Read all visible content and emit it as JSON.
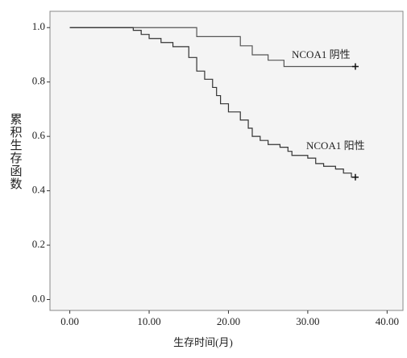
{
  "chart_data": {
    "type": "step",
    "xlabel": "生存时间(月)",
    "ylabel": "累积生存函数",
    "xlim": [
      -2.5,
      42
    ],
    "ylim": [
      -0.04,
      1.06
    ],
    "xticks": [
      {
        "value": 0,
        "label": "0.00"
      },
      {
        "value": 10,
        "label": "10.00"
      },
      {
        "value": 20,
        "label": "20.00"
      },
      {
        "value": 30,
        "label": "30.00"
      },
      {
        "value": 40,
        "label": "40.00"
      }
    ],
    "yticks": [
      {
        "value": 0,
        "label": "0.0"
      },
      {
        "value": 0.2,
        "label": "0.2"
      },
      {
        "value": 0.4,
        "label": "0.4"
      },
      {
        "value": 0.6,
        "label": "0.6"
      },
      {
        "value": 0.8,
        "label": "0.8"
      },
      {
        "value": 1,
        "label": "1.0"
      }
    ],
    "series": [
      {
        "name": "NCOA1 阴性",
        "color": "#555555",
        "x": [
          0,
          16,
          21.5,
          23,
          25,
          27,
          36
        ],
        "values": [
          1.0,
          0.967,
          0.933,
          0.9,
          0.88,
          0.857,
          0.857
        ]
      },
      {
        "name": "NCOA1 阳性",
        "color": "#333333",
        "x": [
          0,
          8,
          9,
          10,
          11.5,
          13,
          15,
          16,
          17,
          18,
          18.5,
          19,
          20,
          21.5,
          22.5,
          23,
          24,
          25,
          26.5,
          27.5,
          28,
          30,
          31,
          32,
          33.5,
          34.5,
          35.5,
          36
        ],
        "values": [
          1.0,
          0.99,
          0.975,
          0.96,
          0.945,
          0.93,
          0.89,
          0.84,
          0.81,
          0.78,
          0.75,
          0.72,
          0.69,
          0.66,
          0.63,
          0.6,
          0.585,
          0.57,
          0.56,
          0.545,
          0.53,
          0.52,
          0.5,
          0.49,
          0.48,
          0.465,
          0.45,
          0.45
        ]
      }
    ]
  }
}
